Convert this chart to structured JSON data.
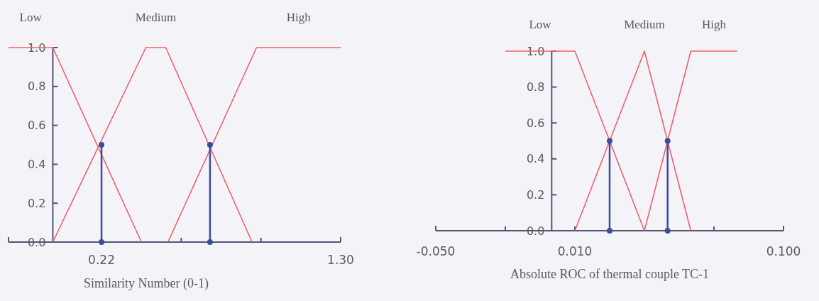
{
  "chart_data": [
    {
      "type": "line",
      "xlabel": "Similarity Number (0-1)",
      "xlim": [
        -0.2,
        1.3
      ],
      "xticks": [
        0.22,
        {
          "value": 0.58,
          "label": null
        },
        {
          "value": 0.94,
          "label": null
        },
        {
          "value": 1.3,
          "label": "1.30"
        }
      ],
      "ylim": [
        0,
        1
      ],
      "yticks": [
        {
          "value": 0,
          "label": "0.0"
        },
        {
          "value": 0.2,
          "label": "0.2"
        },
        {
          "value": 0.4,
          "label": "0.4"
        },
        {
          "value": 0.6,
          "label": "0.6"
        },
        {
          "value": 0.8,
          "label": "0.8"
        },
        {
          "value": 1,
          "label": "1.0"
        }
      ],
      "grid": false,
      "series": [
        {
          "name": "Low",
          "color": "#f0606e",
          "x": [
            -0.2,
            0,
            0.4
          ],
          "values": [
            1,
            1,
            0
          ]
        },
        {
          "name": "Medium",
          "color": "#f0606e",
          "x": [
            0,
            0.42,
            0.51,
            0.9
          ],
          "values": [
            0,
            1,
            1,
            0
          ]
        },
        {
          "name": "High",
          "color": "#f0606e",
          "x": [
            0.52,
            0.92,
            1.3
          ],
          "values": [
            0,
            1,
            1
          ]
        },
        {
          "type": "lollipop",
          "color": "#3c4c9c",
          "x": [
            0.22,
            0.71
          ],
          "values": [
            0.5,
            0.5
          ]
        },
        {
          "type": "scatter",
          "color": "#3c4c9c",
          "x": [
            0.22,
            0.71
          ],
          "values": [
            0,
            0
          ]
        }
      ]
    },
    {
      "type": "line",
      "xlabel": "Absolute ROC of thermal couple TC-1",
      "xlim": [
        -0.05,
        0.1
      ],
      "xticks": [
        {
          "value": -0.05,
          "label": "-0.050"
        },
        {
          "value": -0.02,
          "label": null
        },
        {
          "value": 0.01,
          "label": "0.010"
        },
        {
          "value": 0.07,
          "label": null
        },
        {
          "value": 0.1,
          "label": "0.100"
        }
      ],
      "ylim": [
        0,
        1
      ],
      "yticks": [
        {
          "value": 0,
          "label": "0.0"
        },
        {
          "value": 0.2,
          "label": "0.2"
        },
        {
          "value": 0.4,
          "label": "0.4"
        },
        {
          "value": 0.6,
          "label": "0.6"
        },
        {
          "value": 0.8,
          "label": "0.8"
        },
        {
          "value": 1,
          "label": "1.0"
        }
      ],
      "grid": false,
      "series": [
        {
          "name": "Low",
          "color": "#f0606e",
          "x": [
            -0.02,
            0.01,
            0.04
          ],
          "values": [
            1,
            1,
            0
          ]
        },
        {
          "name": "Medium",
          "color": "#f0606e",
          "x": [
            0.01,
            0.04,
            0.06
          ],
          "values": [
            0,
            1,
            0
          ]
        },
        {
          "name": "High",
          "color": "#f0606e",
          "x": [
            0.04,
            0.06,
            0.08
          ],
          "values": [
            0,
            1,
            1
          ]
        },
        {
          "type": "lollipop",
          "color": "#3c4c9c",
          "x": [
            0.025,
            0.05
          ],
          "values": [
            0.5,
            0.5
          ]
        },
        {
          "type": "scatter",
          "color": "#3c4c9c",
          "x": [
            0.025,
            0.05
          ],
          "values": [
            0,
            0
          ]
        }
      ]
    }
  ]
}
